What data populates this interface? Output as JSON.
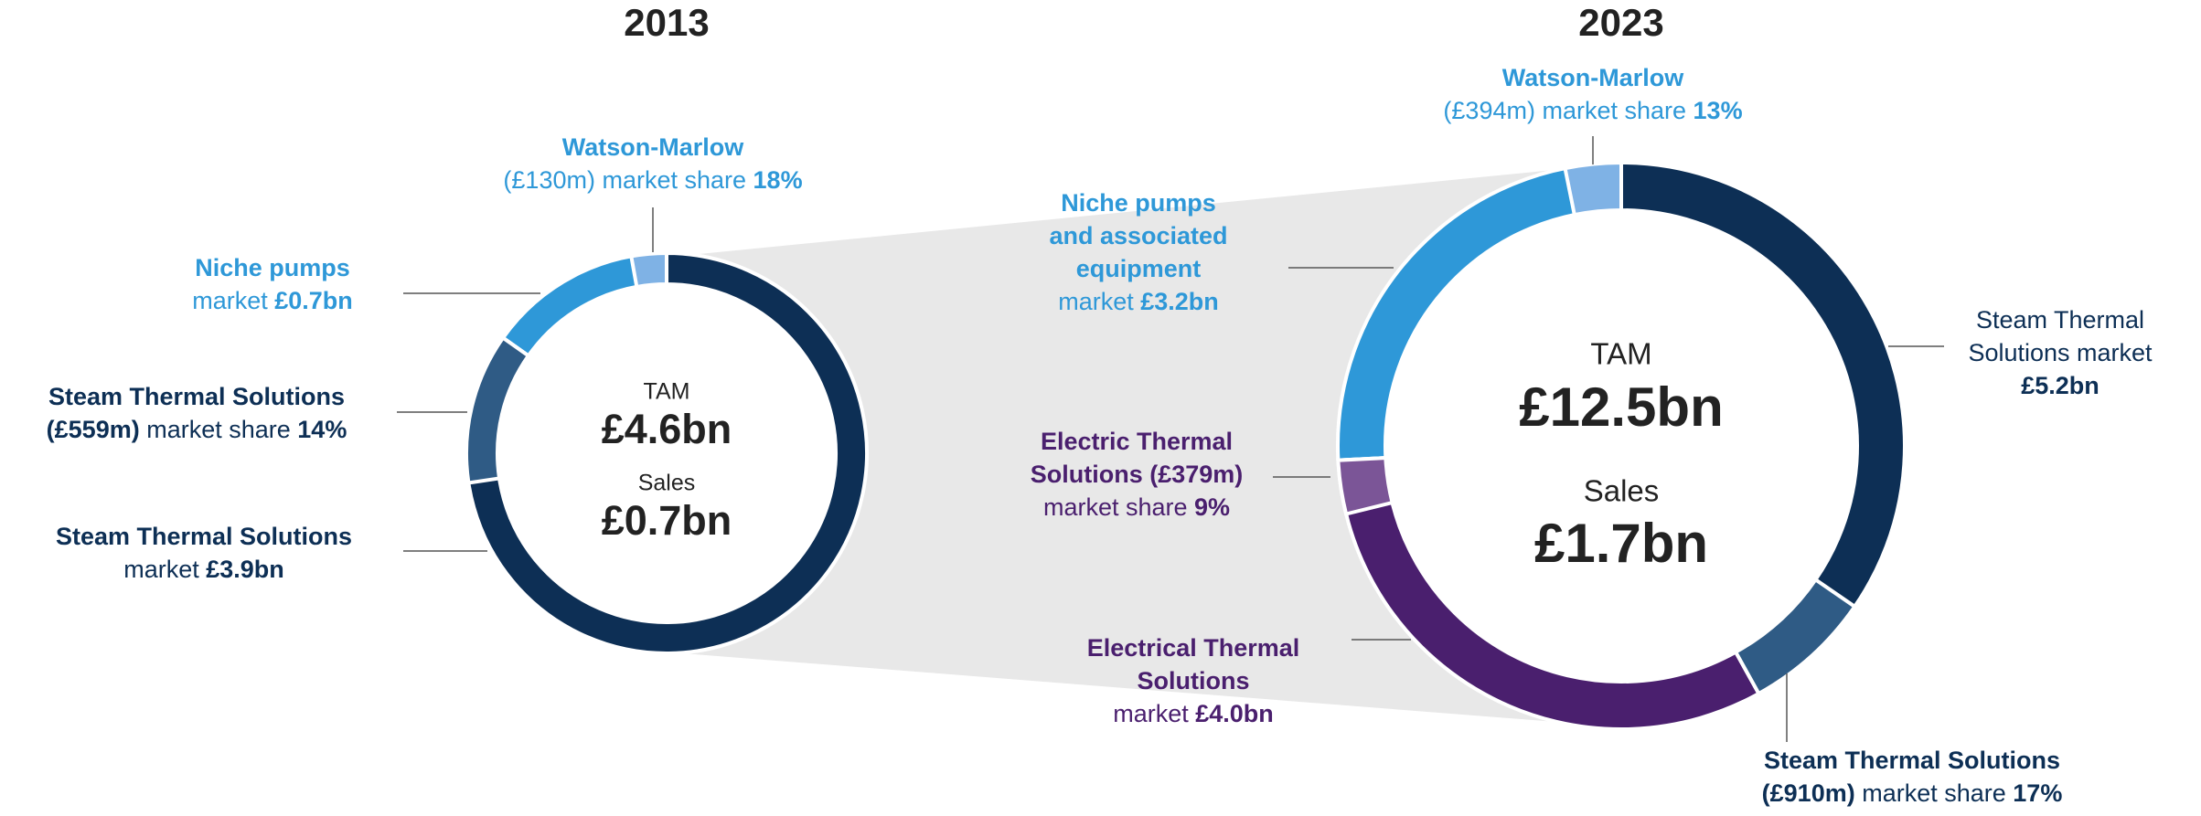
{
  "charts": [
    {
      "type": "donut",
      "title": "2013",
      "center": [
        {
          "text": "TAM",
          "bold": false
        },
        {
          "text": "£4.6bn",
          "bold": true
        },
        {
          "text": "Sales",
          "bold": false
        },
        {
          "text": "£0.7bn",
          "bold": true
        }
      ],
      "segments": [
        {
          "value": 700,
          "color": "#2e98d8",
          "text_color": "#2e98d8",
          "label": [
            [
              {
                "text": "Niche pumps",
                "bold": true
              }
            ],
            [
              {
                "text": "market ",
                "bold": false
              },
              {
                "text": "£0.7bn",
                "bold": true
              }
            ]
          ],
          "share": {
            "value": 130,
            "color": "#7fb2e5",
            "text_color": "#2e98d8",
            "label": [
              [
                {
                  "text": "Watson-Marlow",
                  "bold": true
                }
              ],
              [
                {
                  "text": "(£130m) market share ",
                  "bold": false
                },
                {
                  "text": "18%",
                  "bold": true
                }
              ]
            ]
          }
        },
        {
          "value": 3900,
          "color": "#0d2f55",
          "text_color": "#0d2f55",
          "label": [
            [
              {
                "text": "Steam Thermal Solutions",
                "bold": true
              }
            ],
            [
              {
                "text": "market ",
                "bold": false
              },
              {
                "text": "£3.9bn",
                "bold": true
              }
            ]
          ],
          "share": {
            "value": 559,
            "color": "#2f5b85",
            "text_color": "#0d2f55",
            "label": [
              [
                {
                  "text": "Steam Thermal Solutions",
                  "bold": true
                }
              ],
              [
                {
                  "text": "(£559m)",
                  "bold": true
                },
                {
                  "text": " market share ",
                  "bold": false
                },
                {
                  "text": "14%",
                  "bold": true
                }
              ]
            ]
          }
        }
      ]
    },
    {
      "type": "donut",
      "title": "2023",
      "center": [
        {
          "text": "TAM",
          "bold": false
        },
        {
          "text": "£12.5bn",
          "bold": true
        },
        {
          "text": "Sales",
          "bold": false
        },
        {
          "text": "£1.7bn",
          "bold": true
        }
      ],
      "segments": [
        {
          "value": 3200,
          "color": "#2e98d8",
          "text_color": "#2e98d8",
          "label": [
            [
              {
                "text": "Niche pumps",
                "bold": true
              }
            ],
            [
              {
                "text": "and associated",
                "bold": true
              }
            ],
            [
              {
                "text": "equipment",
                "bold": true
              }
            ],
            [
              {
                "text": "market ",
                "bold": false
              },
              {
                "text": "£3.2bn",
                "bold": true
              }
            ]
          ],
          "share": {
            "value": 394,
            "color": "#7fb2e5",
            "text_color": "#2e98d8",
            "label": [
              [
                {
                  "text": "Watson-Marlow",
                  "bold": true
                }
              ],
              [
                {
                  "text": "(£394m) market share ",
                  "bold": false
                },
                {
                  "text": "13%",
                  "bold": true
                }
              ]
            ]
          }
        },
        {
          "value": 4000,
          "color": "#4a1f6e",
          "text_color": "#4a1f6e",
          "label": [
            [
              {
                "text": "Electrical Thermal",
                "bold": true
              }
            ],
            [
              {
                "text": "Solutions",
                "bold": true
              }
            ],
            [
              {
                "text": "market ",
                "bold": false
              },
              {
                "text": "£4.0bn",
                "bold": true
              }
            ]
          ],
          "share": {
            "value": 379,
            "color": "#7b5597",
            "text_color": "#4a1f6e",
            "label": [
              [
                {
                  "text": "Electric Thermal",
                  "bold": true
                }
              ],
              [
                {
                  "text": "Solutions (£379m)",
                  "bold": true
                }
              ],
              [
                {
                  "text": "market share ",
                  "bold": false
                },
                {
                  "text": "9%",
                  "bold": true
                }
              ]
            ]
          }
        },
        {
          "value": 5200,
          "color": "#0d2f55",
          "text_color": "#0d2f55",
          "label": [
            [
              {
                "text": "Steam Thermal",
                "bold": false
              }
            ],
            [
              {
                "text": "Solutions market",
                "bold": false
              }
            ],
            [
              {
                "text": "£5.2bn",
                "bold": true
              }
            ]
          ],
          "share": {
            "value": 910,
            "color": "#2f5b85",
            "text_color": "#0d2f55",
            "label": [
              [
                {
                  "text": "Steam Thermal Solutions",
                  "bold": true
                }
              ],
              [
                {
                  "text": "(£910m)",
                  "bold": true
                },
                {
                  "text": " market share ",
                  "bold": false
                },
                {
                  "text": "17%",
                  "bold": true
                }
              ]
            ]
          }
        }
      ]
    }
  ]
}
